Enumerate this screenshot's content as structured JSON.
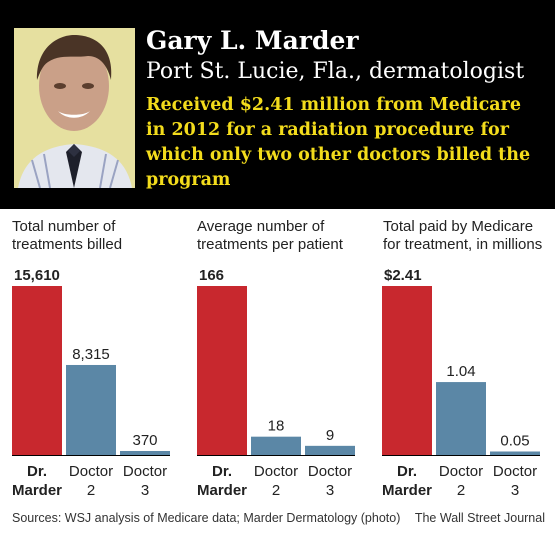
{
  "header": {
    "name": "Gary L. Marder",
    "subtitle": "Port St. Lucie, Fla., dermatologist",
    "headline": "Received $2.41 million from Medicare in 2012 for a radiation procedure for which only two other doctors billed the program"
  },
  "colors": {
    "marder": "#c8282e",
    "others": "#5b87a6",
    "header_bg": "#000000",
    "headline": "#f3dc1c"
  },
  "chart_data": [
    {
      "type": "bar",
      "title": "Total number of treatments billed",
      "categories": [
        "Dr. Marder",
        "Doctor 2",
        "Doctor 3"
      ],
      "values": [
        15610,
        8315,
        370
      ],
      "value_labels": [
        "15,610",
        "8,315",
        "370"
      ],
      "ylim": [
        0,
        15610
      ]
    },
    {
      "type": "bar",
      "title": "Average number of treatments per patient",
      "categories": [
        "Dr. Marder",
        "Doctor 2",
        "Doctor 3"
      ],
      "values": [
        166,
        18,
        9
      ],
      "value_labels": [
        "166",
        "18",
        "9"
      ],
      "ylim": [
        0,
        166
      ]
    },
    {
      "type": "bar",
      "title": "Total paid by Medicare for treatment, in millions",
      "categories": [
        "Dr. Marder",
        "Doctor 2",
        "Doctor 3"
      ],
      "values": [
        2.41,
        1.04,
        0.05
      ],
      "value_labels": [
        "$2.41",
        "1.04",
        "0.05"
      ],
      "ylim": [
        0,
        2.41
      ]
    }
  ],
  "footer": {
    "sources": "Sources: WSJ analysis of Medicare data; Marder Dermatology (photo)",
    "credit": "The Wall Street Journal"
  }
}
